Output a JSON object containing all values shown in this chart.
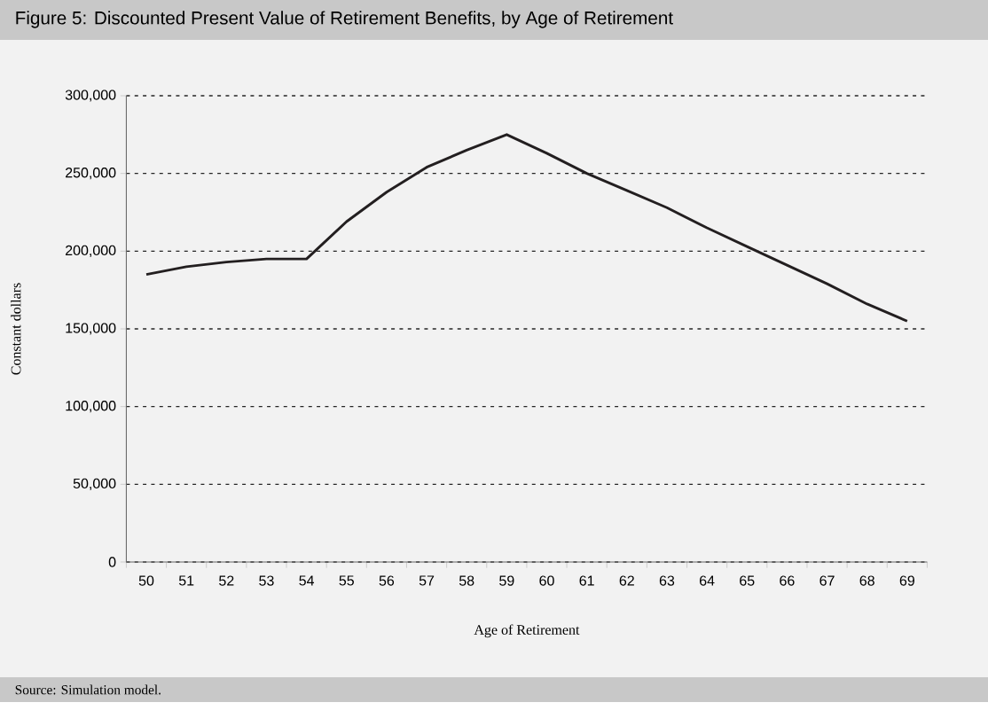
{
  "chart_data": {
    "type": "line",
    "title": "Figure 5: Discounted Present Value of Retirement Benefits, by Age of Retirement",
    "xlabel": "Age of Retirement",
    "ylabel": "Constant dollars",
    "annotations": [
      "Source: Simulation model."
    ],
    "categories": [
      "50",
      "51",
      "52",
      "53",
      "54",
      "55",
      "56",
      "57",
      "58",
      "59",
      "60",
      "61",
      "62",
      "63",
      "64",
      "65",
      "66",
      "67",
      "68",
      "69"
    ],
    "values": [
      185000,
      190000,
      193000,
      195000,
      195000,
      219000,
      238000,
      254000,
      265000,
      275000,
      263000,
      250000,
      239000,
      228000,
      215000,
      203000,
      191000,
      179000,
      166000,
      155000
    ],
    "color": "#231f20",
    "ylim": [
      0,
      300000
    ],
    "yticks": [
      0,
      {
        "value": 50000,
        "label": "50,000"
      },
      {
        "value": 100000,
        "label": "100,000"
      },
      {
        "value": 150000,
        "label": "150,000"
      },
      {
        "value": 200000,
        "label": "200,000"
      },
      {
        "value": 250000,
        "label": "250,000"
      },
      {
        "value": 300000,
        "label": "300,000"
      }
    ],
    "grid": "y"
  }
}
